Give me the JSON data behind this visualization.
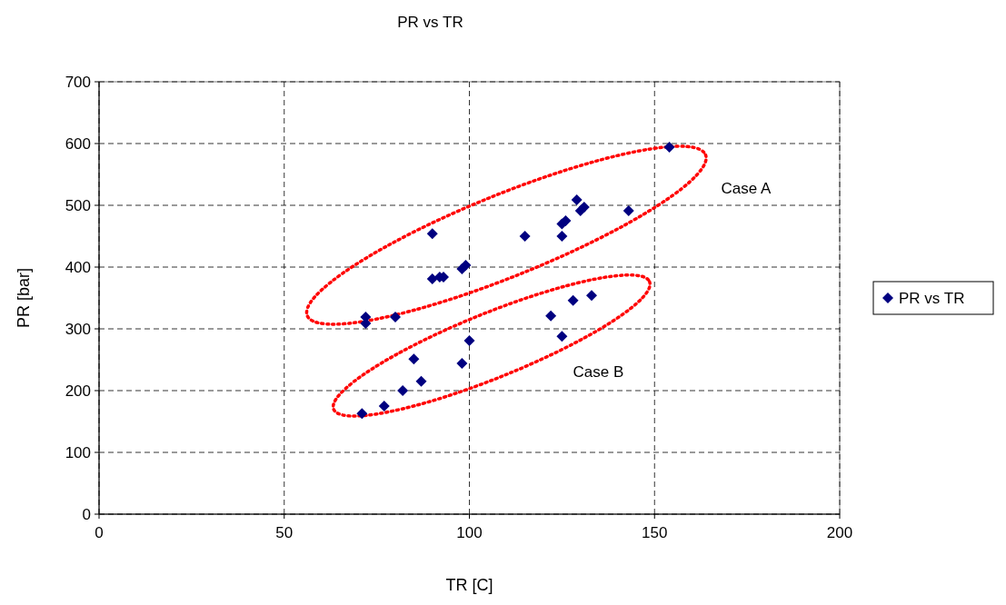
{
  "chart_data": {
    "type": "scatter",
    "title": "PR vs TR",
    "xlabel": "TR [C]",
    "ylabel": "PR [bar]",
    "xlim": [
      0,
      200
    ],
    "xticks": [
      0,
      50,
      100,
      150,
      200
    ],
    "ylim": [
      0,
      700
    ],
    "yticks": [
      0,
      100,
      200,
      300,
      400,
      500,
      600,
      700
    ],
    "grid": true,
    "legend": "right",
    "marker": "diamond",
    "annotations": [
      "Case A",
      "Case B"
    ],
    "series": [
      {
        "name": "PR vs TR",
        "color": "#000080",
        "x": [
          72,
          72,
          80,
          90,
          90,
          92,
          93,
          98,
          99,
          115,
          125,
          125,
          126,
          129,
          130,
          131,
          143,
          154,
          71,
          77,
          82,
          87,
          85,
          98,
          100,
          122,
          125,
          128,
          133
        ],
        "values": [
          319,
          309,
          319,
          454,
          381,
          384,
          384,
          397,
          403,
          450,
          450,
          470,
          475,
          509,
          491,
          497,
          491,
          594,
          163,
          175,
          200,
          215,
          251,
          244,
          281,
          321,
          288,
          346,
          354
        ]
      }
    ]
  }
}
